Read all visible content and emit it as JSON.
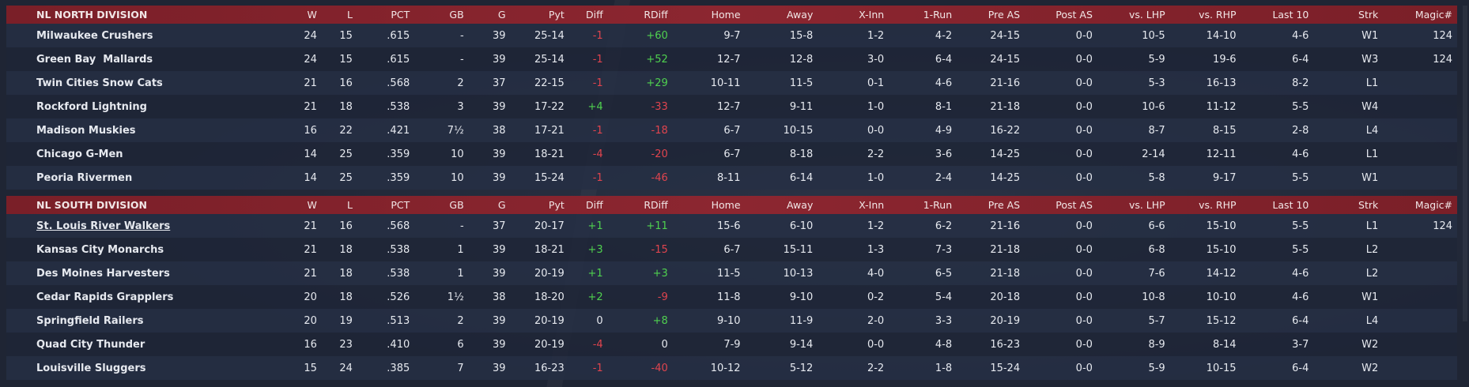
{
  "headers": {
    "w": "W",
    "l": "L",
    "pct": "PCT",
    "gb": "GB",
    "g": "G",
    "pyt": "Pyt",
    "diff": "Diff",
    "rdiff": "RDiff",
    "home": "Home",
    "away": "Away",
    "xinn": "X-Inn",
    "onerun": "1-Run",
    "preas": "Pre AS",
    "postas": "Post AS",
    "vlhp": "vs. LHP",
    "vrhp": "vs. RHP",
    "last10": "Last 10",
    "strk": "Strk",
    "magic": "Magic#"
  },
  "colors": {
    "header_bg": "#8c2630",
    "positive": "#4fd14f",
    "negative": "#e0444e"
  },
  "divisions": [
    {
      "name": "NL NORTH DIVISION",
      "teams": [
        {
          "name": "Milwaukee Crushers",
          "w": "24",
          "l": "15",
          "pct": ".615",
          "gb": "-",
          "g": "39",
          "pyt": "25-14",
          "diff": "-1",
          "rdiff": "+60",
          "home": "9-7",
          "away": "15-8",
          "xinn": "1-2",
          "onerun": "4-2",
          "preas": "24-15",
          "postas": "0-0",
          "vlhp": "10-5",
          "vrhp": "14-10",
          "last10": "4-6",
          "strk": "W1",
          "magic": "124"
        },
        {
          "name": "Green Bay  Mallards",
          "w": "24",
          "l": "15",
          "pct": ".615",
          "gb": "-",
          "g": "39",
          "pyt": "25-14",
          "diff": "-1",
          "rdiff": "+52",
          "home": "12-7",
          "away": "12-8",
          "xinn": "3-0",
          "onerun": "6-4",
          "preas": "24-15",
          "postas": "0-0",
          "vlhp": "5-9",
          "vrhp": "19-6",
          "last10": "6-4",
          "strk": "W3",
          "magic": "124"
        },
        {
          "name": "Twin Cities Snow Cats",
          "w": "21",
          "l": "16",
          "pct": ".568",
          "gb": "2",
          "g": "37",
          "pyt": "22-15",
          "diff": "-1",
          "rdiff": "+29",
          "home": "10-11",
          "away": "11-5",
          "xinn": "0-1",
          "onerun": "4-6",
          "preas": "21-16",
          "postas": "0-0",
          "vlhp": "5-3",
          "vrhp": "16-13",
          "last10": "8-2",
          "strk": "L1",
          "magic": ""
        },
        {
          "name": "Rockford Lightning",
          "w": "21",
          "l": "18",
          "pct": ".538",
          "gb": "3",
          "g": "39",
          "pyt": "17-22",
          "diff": "+4",
          "rdiff": "-33",
          "home": "12-7",
          "away": "9-11",
          "xinn": "1-0",
          "onerun": "8-1",
          "preas": "21-18",
          "postas": "0-0",
          "vlhp": "10-6",
          "vrhp": "11-12",
          "last10": "5-5",
          "strk": "W4",
          "magic": ""
        },
        {
          "name": "Madison Muskies",
          "w": "16",
          "l": "22",
          "pct": ".421",
          "gb": "7½",
          "g": "38",
          "pyt": "17-21",
          "diff": "-1",
          "rdiff": "-18",
          "home": "6-7",
          "away": "10-15",
          "xinn": "0-0",
          "onerun": "4-9",
          "preas": "16-22",
          "postas": "0-0",
          "vlhp": "8-7",
          "vrhp": "8-15",
          "last10": "2-8",
          "strk": "L4",
          "magic": ""
        },
        {
          "name": "Chicago G-Men",
          "w": "14",
          "l": "25",
          "pct": ".359",
          "gb": "10",
          "g": "39",
          "pyt": "18-21",
          "diff": "-4",
          "rdiff": "-20",
          "home": "6-7",
          "away": "8-18",
          "xinn": "2-2",
          "onerun": "3-6",
          "preas": "14-25",
          "postas": "0-0",
          "vlhp": "2-14",
          "vrhp": "12-11",
          "last10": "4-6",
          "strk": "L1",
          "magic": ""
        },
        {
          "name": "Peoria Rivermen",
          "w": "14",
          "l": "25",
          "pct": ".359",
          "gb": "10",
          "g": "39",
          "pyt": "15-24",
          "diff": "-1",
          "rdiff": "-46",
          "home": "8-11",
          "away": "6-14",
          "xinn": "1-0",
          "onerun": "2-4",
          "preas": "14-25",
          "postas": "0-0",
          "vlhp": "5-8",
          "vrhp": "9-17",
          "last10": "5-5",
          "strk": "W1",
          "magic": ""
        }
      ]
    },
    {
      "name": "NL SOUTH DIVISION",
      "teams": [
        {
          "name": "St. Louis River Walkers",
          "w": "21",
          "l": "16",
          "pct": ".568",
          "gb": "-",
          "g": "37",
          "pyt": "20-17",
          "diff": "+1",
          "rdiff": "+11",
          "home": "15-6",
          "away": "6-10",
          "xinn": "1-2",
          "onerun": "6-2",
          "preas": "21-16",
          "postas": "0-0",
          "vlhp": "6-6",
          "vrhp": "15-10",
          "last10": "5-5",
          "strk": "L1",
          "magic": "124"
        },
        {
          "name": "Kansas City Monarchs",
          "w": "21",
          "l": "18",
          "pct": ".538",
          "gb": "1",
          "g": "39",
          "pyt": "18-21",
          "diff": "+3",
          "rdiff": "-15",
          "home": "6-7",
          "away": "15-11",
          "xinn": "1-3",
          "onerun": "7-3",
          "preas": "21-18",
          "postas": "0-0",
          "vlhp": "6-8",
          "vrhp": "15-10",
          "last10": "5-5",
          "strk": "L2",
          "magic": ""
        },
        {
          "name": "Des Moines Harvesters",
          "w": "21",
          "l": "18",
          "pct": ".538",
          "gb": "1",
          "g": "39",
          "pyt": "20-19",
          "diff": "+1",
          "rdiff": "+3",
          "home": "11-5",
          "away": "10-13",
          "xinn": "4-0",
          "onerun": "6-5",
          "preas": "21-18",
          "postas": "0-0",
          "vlhp": "7-6",
          "vrhp": "14-12",
          "last10": "4-6",
          "strk": "L2",
          "magic": ""
        },
        {
          "name": "Cedar Rapids Grapplers",
          "w": "20",
          "l": "18",
          "pct": ".526",
          "gb": "1½",
          "g": "38",
          "pyt": "18-20",
          "diff": "+2",
          "rdiff": "-9",
          "home": "11-8",
          "away": "9-10",
          "xinn": "0-2",
          "onerun": "5-4",
          "preas": "20-18",
          "postas": "0-0",
          "vlhp": "10-8",
          "vrhp": "10-10",
          "last10": "4-6",
          "strk": "W1",
          "magic": ""
        },
        {
          "name": "Springfield Railers",
          "w": "20",
          "l": "19",
          "pct": ".513",
          "gb": "2",
          "g": "39",
          "pyt": "20-19",
          "diff": "0",
          "rdiff": "+8",
          "home": "9-10",
          "away": "11-9",
          "xinn": "2-0",
          "onerun": "3-3",
          "preas": "20-19",
          "postas": "0-0",
          "vlhp": "5-7",
          "vrhp": "15-12",
          "last10": "6-4",
          "strk": "L4",
          "magic": ""
        },
        {
          "name": "Quad City Thunder",
          "w": "16",
          "l": "23",
          "pct": ".410",
          "gb": "6",
          "g": "39",
          "pyt": "20-19",
          "diff": "-4",
          "rdiff": "0",
          "home": "7-9",
          "away": "9-14",
          "xinn": "0-0",
          "onerun": "4-8",
          "preas": "16-23",
          "postas": "0-0",
          "vlhp": "8-9",
          "vrhp": "8-14",
          "last10": "3-7",
          "strk": "W2",
          "magic": ""
        },
        {
          "name": "Louisville Sluggers",
          "w": "15",
          "l": "24",
          "pct": ".385",
          "gb": "7",
          "g": "39",
          "pyt": "16-23",
          "diff": "-1",
          "rdiff": "-40",
          "home": "10-12",
          "away": "5-12",
          "xinn": "2-2",
          "onerun": "1-8",
          "preas": "15-24",
          "postas": "0-0",
          "vlhp": "5-9",
          "vrhp": "10-15",
          "last10": "6-4",
          "strk": "W2",
          "magic": ""
        }
      ]
    }
  ]
}
